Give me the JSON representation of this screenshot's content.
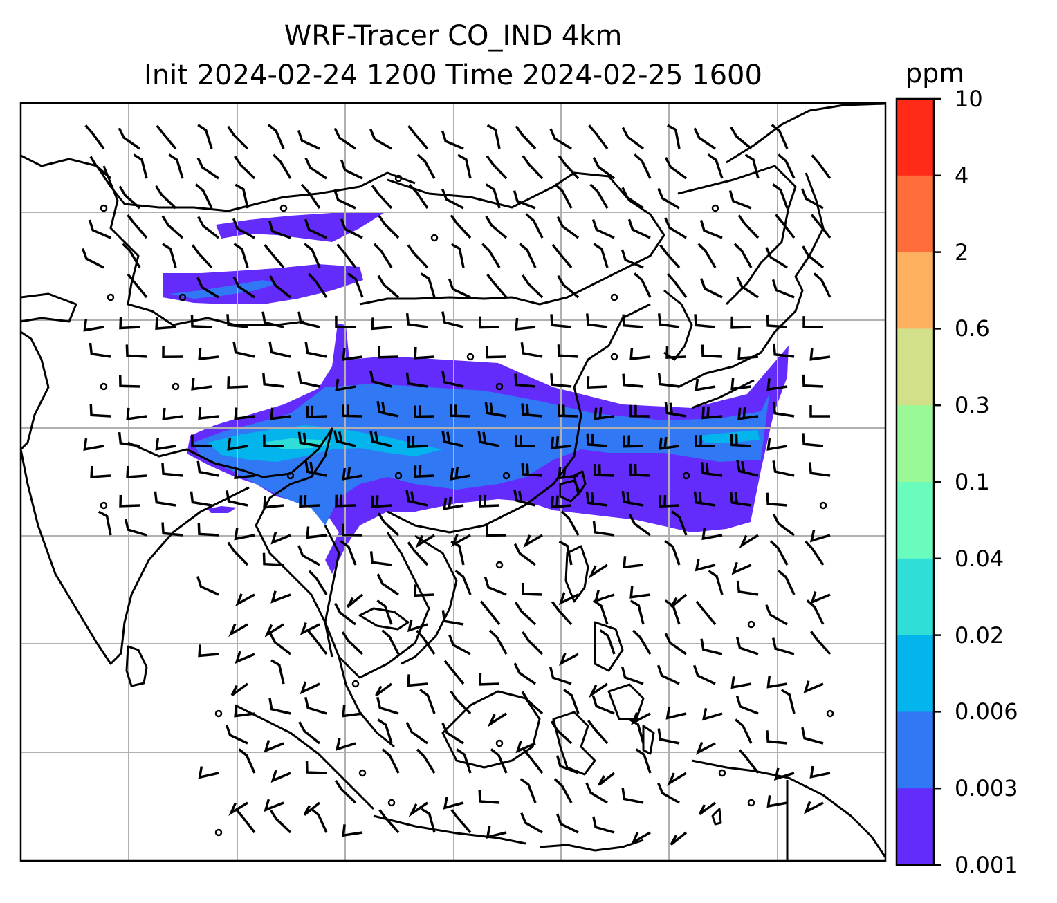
{
  "title": {
    "line1": "WRF-Tracer CO_IND 4km",
    "line2": "Init 2024-02-24 1200 Time 2024-02-25 1600"
  },
  "colorbar": {
    "unit": "ppm",
    "levels": [
      "10",
      "4",
      "2",
      "0.6",
      "0.3",
      "0.1",
      "0.04",
      "0.02",
      "0.006",
      "0.003",
      "0.001"
    ],
    "colors": [
      "#ff2a17",
      "#ff6e3a",
      "#fdb060",
      "#d2e189",
      "#9af997",
      "#6afcbd",
      "#2fdfd7",
      "#03b5ec",
      "#3178f4",
      "#642cfa"
    ]
  },
  "map": {
    "features": [
      "coastlines",
      "country-borders",
      "lat-lon-gridlines",
      "wind-barbs"
    ],
    "plume_colors": [
      "#642cfa",
      "#3178f4",
      "#03b5ec",
      "#2fdfd7"
    ]
  }
}
